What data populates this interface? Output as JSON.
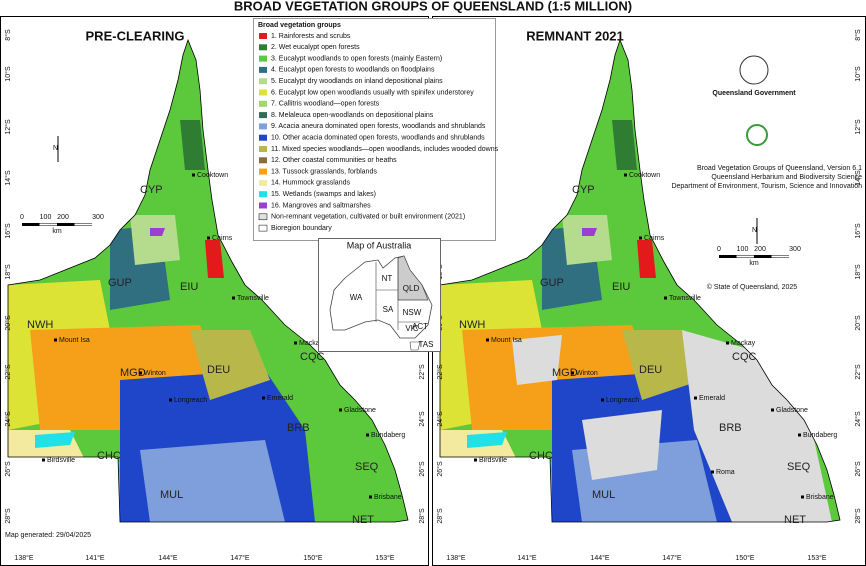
{
  "header": {
    "title": "BROAD VEGETATION GROUPS OF QUEENSLAND (1:5 MILLION)"
  },
  "panels": [
    {
      "title": "PRE-CLEARING"
    },
    {
      "title": "REMNANT 2021"
    }
  ],
  "legend": {
    "title": "Broad vegetation groups",
    "items": [
      {
        "label": "1. Rainforests and scrubs",
        "color": "#e31a1c"
      },
      {
        "label": "2. Wet eucalypt open forests",
        "color": "#2e7d32"
      },
      {
        "label": "3. Eucalypt woodlands to open forests (mainly Eastern)",
        "color": "#5cc83c"
      },
      {
        "label": "4. Eucalypt open forests to woodlands on floodplains",
        "color": "#2f6f80"
      },
      {
        "label": "5. Eucalypt dry woodlands on inland depositional plains",
        "color": "#b5dc8c"
      },
      {
        "label": "6. Eucalypt low open woodlands usually with spinifex understorey",
        "color": "#dde334"
      },
      {
        "label": "7. Callitris woodland—open forests",
        "color": "#9fd86e"
      },
      {
        "label": "8. Melaleuca open-woodlands on depositional plains",
        "color": "#2e6e5a"
      },
      {
        "label": "9. Acacia aneura dominated open forests, woodlands and shrublands",
        "color": "#7f9fdc"
      },
      {
        "label": "10. Other acacia dominated open forests, woodlands and shrublands",
        "color": "#1f45c8"
      },
      {
        "label": "11. Mixed species woodlands—open woodlands, includes wooded downs",
        "color": "#b8b84a"
      },
      {
        "label": "12. Other coastal communities or heaths",
        "color": "#8a6d3b"
      },
      {
        "label": "13. Tussock grasslands, forblands",
        "color": "#f6a01a"
      },
      {
        "label": "14. Hummock grasslands",
        "color": "#f3eaa0"
      },
      {
        "label": "15. Wetlands (swamps and lakes)",
        "color": "#22e0e8"
      },
      {
        "label": "16. Mangroves and saltmarshes",
        "color": "#9b3fd1"
      },
      {
        "label": "Non-remnant vegetation, cultivated or built environment (2021)",
        "color": "#e0e0e0"
      },
      {
        "label": "Bioregion boundary",
        "color": "#ffffff"
      }
    ]
  },
  "latitudes": [
    "8°S",
    "10°S",
    "12°S",
    "14°S",
    "16°S",
    "18°S",
    "20°S",
    "22°S",
    "24°S",
    "26°S",
    "28°S"
  ],
  "longitudes": [
    "138°E",
    "141°E",
    "144°E",
    "147°E",
    "150°E",
    "153°E"
  ],
  "bioregions": [
    "CYP",
    "GUP",
    "EIU",
    "NWH",
    "MGD",
    "DEU",
    "CHC",
    "BRB",
    "MUL",
    "SEQ",
    "NET",
    "CQC"
  ],
  "towns": [
    "Cooktown",
    "Cairns",
    "Townsville",
    "Mackay",
    "Mount Isa",
    "Winton",
    "Longreach",
    "Emerald",
    "Gladstone",
    "Bundaberg",
    "Birdsville",
    "Brisbane",
    "Roma"
  ],
  "inset": {
    "title": "Map of Australia",
    "labels": [
      "WA",
      "NT",
      "QLD",
      "SA",
      "NSW",
      "ACT",
      "VIC",
      "TAS"
    ]
  },
  "scale_bar": {
    "ticks": [
      "0",
      "100",
      "200",
      "300"
    ],
    "unit": "km"
  },
  "north": "N",
  "credits": {
    "logo": "Queensland Government",
    "lines": [
      "Broad Vegetation Groups of Queensland, Version 6.1",
      "Queensland Herbarium and Biodiversity Science",
      "Department of Environment, Tourism, Science and Innovation"
    ],
    "copyright": "© State of Queensland, 2025"
  },
  "generated": "Map generated: 29/04/2025"
}
